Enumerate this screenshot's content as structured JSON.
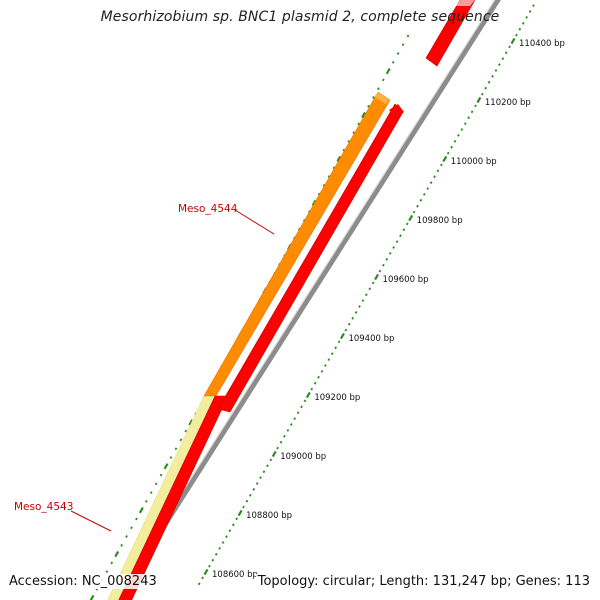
{
  "title": "Mesorhizobium sp. BNC1 plasmid 2, complete sequence",
  "footer": {
    "accession": "Accession: NC_008243",
    "summary": "Topology: circular; Length: 131,247 bp; Genes: 113"
  },
  "colors": {
    "forward_gene": "#ff0000",
    "forward_gene_edge": "#c40000",
    "cds_orange": "#ff8c00",
    "cds_pale": "#f2ee9e",
    "backbone": "#8c8c8c",
    "tick": "#2e8b22",
    "label_red": "#cc0000"
  },
  "scale_ticks": [
    {
      "bp": 108600,
      "label": "108600 bp"
    },
    {
      "bp": 108800,
      "label": "108800 bp"
    },
    {
      "bp": 109000,
      "label": "109000 bp"
    },
    {
      "bp": 109200,
      "label": "109200 bp"
    },
    {
      "bp": 109400,
      "label": "109400 bp"
    },
    {
      "bp": 109600,
      "label": "109600 bp"
    },
    {
      "bp": 109800,
      "label": "109800 bp"
    },
    {
      "bp": 110000,
      "label": "110000 bp"
    },
    {
      "bp": 110200,
      "label": "110200 bp"
    },
    {
      "bp": 110400,
      "label": "110400 bp"
    }
  ],
  "gene_labels": [
    {
      "name": "Meso_4544"
    },
    {
      "name": "Meso_4543"
    }
  ]
}
